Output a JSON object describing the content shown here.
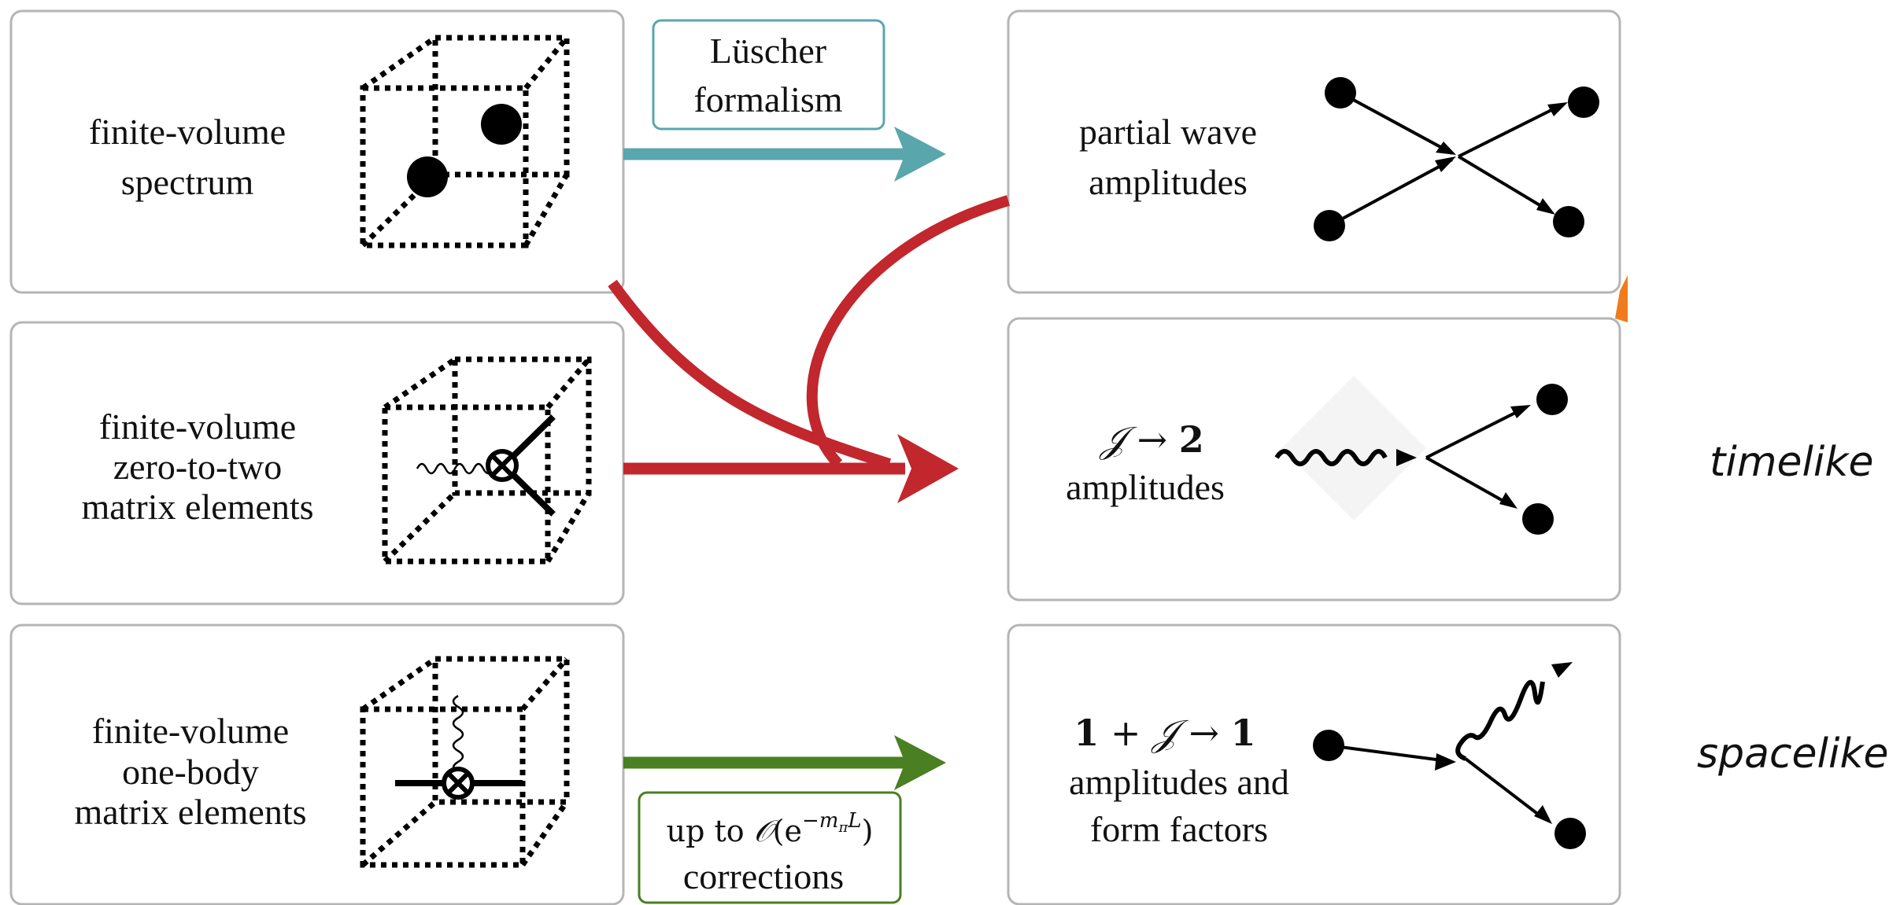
{
  "colors": {
    "teal": "#5aa6ad",
    "red": "#c1272d",
    "green": "#4a7f22",
    "orange": "#f07b1c",
    "border": "#b5b5b5"
  },
  "left_panels": {
    "spectrum": {
      "line1": "finite-volume",
      "line2": "spectrum"
    },
    "zero_to_two": {
      "line1": "finite-volume",
      "line2": "zero-to-two",
      "line3": "matrix elements"
    },
    "one_body": {
      "line1": "finite-volume",
      "line2": "one-body",
      "line3": "matrix elements"
    }
  },
  "right_panels": {
    "partial_wave": {
      "line1": "partial wave",
      "line2": "amplitudes"
    },
    "j_to_2": {
      "formula_j": "𝒥",
      "formula_arrow": "→",
      "formula_2": "2",
      "line2": "amplitudes"
    },
    "one_plus_j": {
      "formula_1": "1",
      "formula_plus": "+",
      "formula_j": "𝒥",
      "formula_arrow": "→",
      "formula_1b": "1",
      "line2": "amplitudes and",
      "line3": "form factors"
    }
  },
  "connectors": {
    "luscher": {
      "line1": "Lüscher",
      "line2": "formalism"
    },
    "corrections": {
      "prefix": "up to ",
      "O": "𝒪",
      "open": "(e",
      "exponent": "−m",
      "exp_sub": "π",
      "exp_L": "L",
      "close": ")",
      "line2": "corrections"
    }
  },
  "side_labels": {
    "timelike": "timelike",
    "spacelike": "spacelike"
  }
}
